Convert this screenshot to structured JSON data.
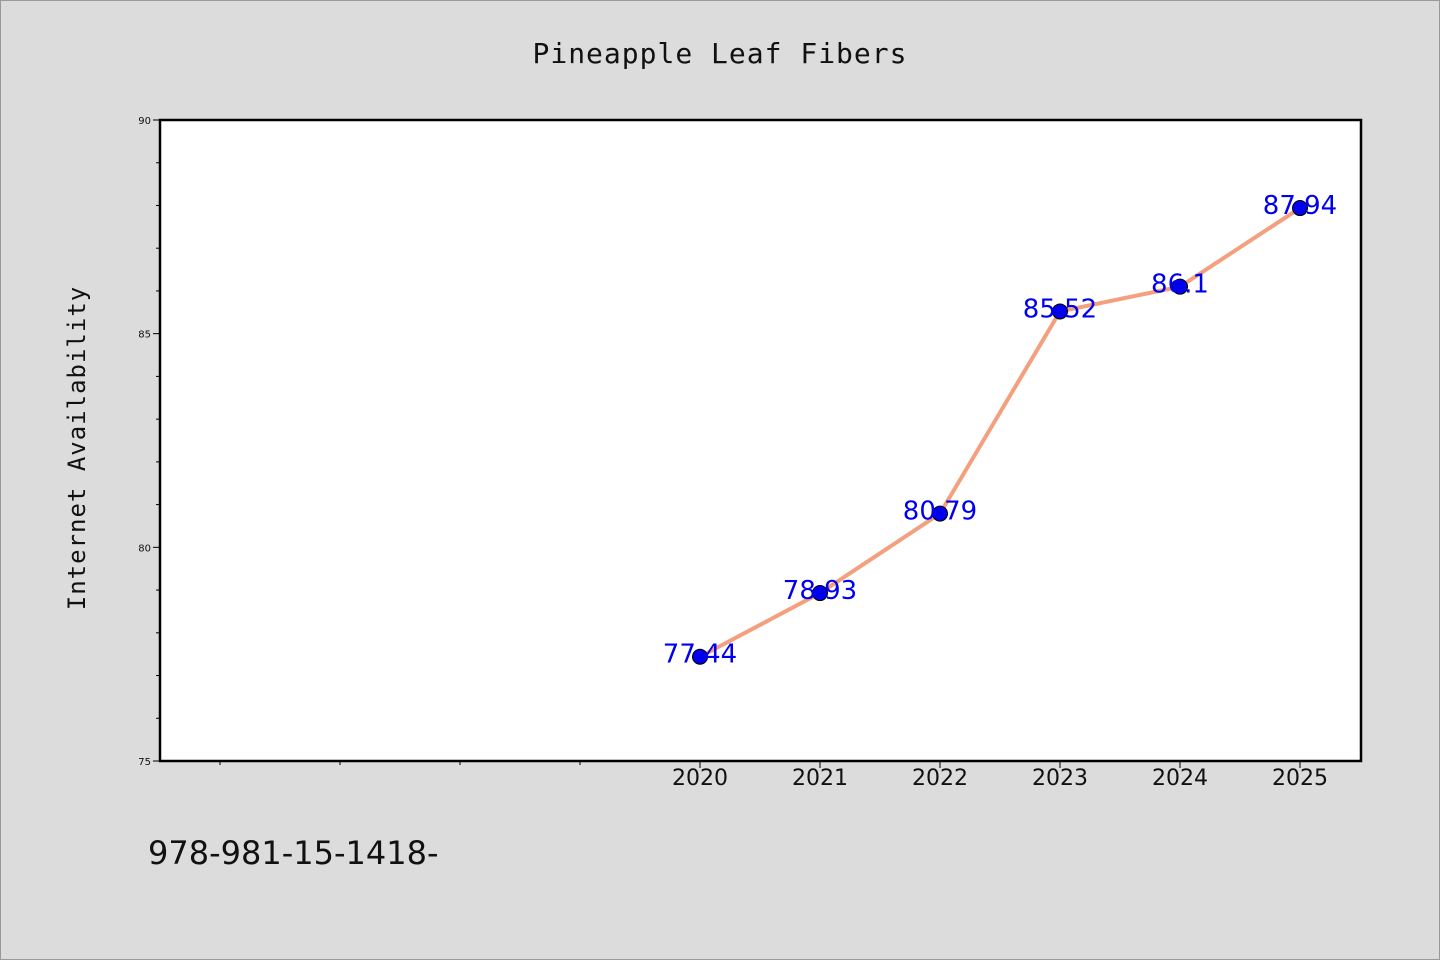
{
  "chart_data": {
    "type": "line",
    "title": "Pineapple Leaf Fibers",
    "xlabel": "",
    "ylabel": "Internet Availability",
    "x": [
      "2020",
      "2021",
      "2022",
      "2023",
      "2024",
      "2025"
    ],
    "series": [
      {
        "values": [
          77.44,
          78.93,
          80.79,
          85.52,
          86.1,
          87.94
        ]
      }
    ],
    "data_labels": [
      "77.44",
      "78.93",
      "80.79",
      "85.52",
      "86.1",
      "87.94"
    ],
    "ylim": [
      75,
      90
    ],
    "yticks": [
      "75",
      "80",
      "85",
      "90"
    ],
    "grid": false,
    "colors": {
      "line": "#f4a07e",
      "marker": "#0000ee",
      "label": "#0000ee",
      "frame": "#000000"
    }
  },
  "footnote": "978-981-15-1418-"
}
